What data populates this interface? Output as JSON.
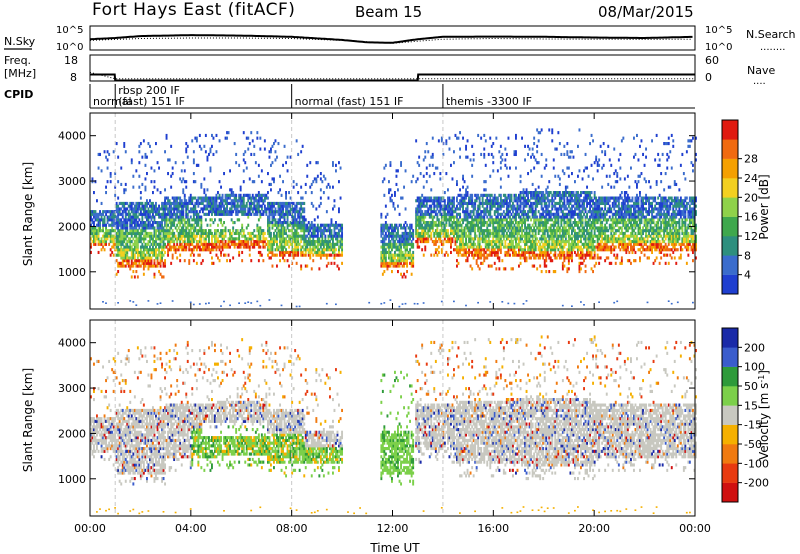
{
  "header": {
    "station": "Fort Hays East (fitACF)",
    "beam": "Beam 15",
    "date": "08/Mar/2015"
  },
  "panels": {
    "nsky_label": "N.Sky",
    "nsearch_label": "N.Search",
    "nsearch_legend": "........",
    "freq_label_1": "Freq.",
    "freq_label_2": "[MHz]",
    "nave_label": "Nave",
    "nave_legend": "....",
    "cpid_label": "CPID"
  },
  "ticks": {
    "nsky": [
      "10^5",
      "10^0"
    ],
    "nsearch": [
      "10^5",
      "10^0"
    ],
    "freq": [
      "18",
      "8"
    ],
    "nave": [
      "60",
      "0"
    ]
  },
  "cpid_segments": [
    {
      "start": 0.0,
      "end": 1.0,
      "label": "normal"
    },
    {
      "start": 1.0,
      "end": 8.0,
      "label": "rbsp 200 IF",
      "label2": "(fast) 151 IF"
    },
    {
      "start": 8.0,
      "end": 14.0,
      "label": "normal (fast) 151 IF"
    },
    {
      "start": 14.0,
      "end": 24.0,
      "label": "themis -3300 IF"
    }
  ],
  "chart_data": [
    {
      "type": "line",
      "name": "noise-panel",
      "xlabel": "",
      "ylabel": "N.Sky",
      "xlim": [
        0,
        24
      ],
      "series": [
        {
          "name": "N.Sky",
          "x": [
            0,
            1,
            2,
            4,
            6,
            8,
            10,
            11,
            12,
            13,
            14,
            16,
            18,
            20,
            22,
            24
          ],
          "values": [
            0.45,
            0.5,
            0.58,
            0.62,
            0.6,
            0.55,
            0.42,
            0.32,
            0.3,
            0.45,
            0.55,
            0.56,
            0.55,
            0.52,
            0.5,
            0.55
          ]
        },
        {
          "name": "N.Search",
          "x": [
            0,
            2,
            4,
            6,
            8,
            10,
            12,
            14,
            16,
            18,
            20,
            22,
            24
          ],
          "values": [
            0.4,
            0.48,
            0.5,
            0.5,
            0.48,
            0.4,
            0.28,
            0.45,
            0.48,
            0.46,
            0.45,
            0.44,
            0.45
          ]
        }
      ]
    },
    {
      "type": "line",
      "name": "freq-panel",
      "xlim": [
        0,
        24
      ],
      "series": [
        {
          "name": "Freq.",
          "x": [
            0,
            0.98,
            1.0,
            13.0,
            13.02,
            24
          ],
          "values": [
            10.5,
            10.5,
            8.2,
            8.2,
            10.5,
            10.5
          ]
        },
        {
          "name": "Nave",
          "x": [
            0,
            1,
            13,
            24
          ],
          "values": [
            20,
            5,
            5,
            5
          ]
        }
      ]
    },
    {
      "type": "heatmap",
      "name": "power-panel",
      "title": "",
      "xlabel": "",
      "ylabel": "Slant Range [km]",
      "xlim": [
        0,
        24
      ],
      "ylim": [
        180,
        4500
      ],
      "x_ticks": [
        0,
        4,
        8,
        12,
        16,
        20,
        24
      ],
      "y_ticks": [
        1000,
        2000,
        3000,
        4000
      ],
      "colorbar": {
        "label": "Power [dB]",
        "ticks": [
          "4",
          "8",
          "12",
          "16",
          "20",
          "24",
          "28"
        ],
        "range": [
          0,
          30
        ],
        "colors": [
          "#1f3fd0",
          "#3a6ccc",
          "#2e8f7e",
          "#3fa84d",
          "#8fd24a",
          "#f3d020",
          "#f5a000",
          "#f06a10",
          "#e01a10"
        ]
      },
      "bands": [
        {
          "t0": 0.0,
          "t1": 1.0,
          "lower": 1550,
          "upper": 2300
        },
        {
          "t0": 1.0,
          "t1": 3.0,
          "lower": 1100,
          "upper": 2500
        },
        {
          "t0": 3.0,
          "t1": 5.0,
          "lower": 1450,
          "upper": 2600
        },
        {
          "t0": 5.0,
          "t1": 7.0,
          "lower": 1500,
          "upper": 2700
        },
        {
          "t0": 7.0,
          "t1": 8.5,
          "lower": 1300,
          "upper": 2500
        },
        {
          "t0": 8.5,
          "t1": 10.0,
          "lower": 1300,
          "upper": 2000
        },
        {
          "t0": 11.5,
          "t1": 12.8,
          "lower": 1100,
          "upper": 2000
        },
        {
          "t0": 12.9,
          "t1": 14.5,
          "lower": 1600,
          "upper": 2600
        },
        {
          "t0": 14.5,
          "t1": 17.0,
          "lower": 1300,
          "upper": 2700
        },
        {
          "t0": 17.0,
          "t1": 20.0,
          "lower": 1250,
          "upper": 2750
        },
        {
          "t0": 20.0,
          "t1": 24.0,
          "lower": 1450,
          "upper": 2600
        }
      ]
    },
    {
      "type": "heatmap",
      "name": "velocity-panel",
      "title": "",
      "xlabel": "Time UT",
      "ylabel": "Slant Range [km]",
      "xlim": [
        0,
        24
      ],
      "ylim": [
        180,
        4500
      ],
      "x_ticks": [
        0,
        4,
        8,
        12,
        16,
        20,
        24
      ],
      "x_tick_labels": [
        "00:00",
        "04:00",
        "08:00",
        "12:00",
        "16:00",
        "20:00",
        "00:00"
      ],
      "y_ticks": [
        1000,
        2000,
        3000,
        4000
      ],
      "colorbar": {
        "label": "Velocity [m s^-1]",
        "ticks": [
          "200",
          "100",
          "50",
          "15",
          "-15",
          "-50",
          "-100",
          "-200"
        ],
        "colors": [
          "#1a2aa8",
          "#3a5ccc",
          "#2e9a3a",
          "#7cd04a",
          "#c8c8c0",
          "#f5b000",
          "#f07a10",
          "#e83a10",
          "#d01010"
        ]
      },
      "bands": [
        {
          "t0": 0.0,
          "t1": 1.0,
          "lower": 1550,
          "upper": 2300
        },
        {
          "t0": 1.0,
          "t1": 3.0,
          "lower": 1100,
          "upper": 2500
        },
        {
          "t0": 3.0,
          "t1": 5.0,
          "lower": 1450,
          "upper": 2600
        },
        {
          "t0": 5.0,
          "t1": 7.0,
          "lower": 1500,
          "upper": 2700
        },
        {
          "t0": 7.0,
          "t1": 8.5,
          "lower": 1300,
          "upper": 2500
        },
        {
          "t0": 8.5,
          "t1": 10.0,
          "lower": 1300,
          "upper": 2000
        },
        {
          "t0": 11.5,
          "t1": 12.8,
          "lower": 1100,
          "upper": 2000
        },
        {
          "t0": 12.9,
          "t1": 14.5,
          "lower": 1600,
          "upper": 2600
        },
        {
          "t0": 14.5,
          "t1": 17.0,
          "lower": 1300,
          "upper": 2700
        },
        {
          "t0": 17.0,
          "t1": 20.0,
          "lower": 1250,
          "upper": 2750
        },
        {
          "t0": 20.0,
          "t1": 24.0,
          "lower": 1450,
          "upper": 2600
        }
      ]
    }
  ]
}
